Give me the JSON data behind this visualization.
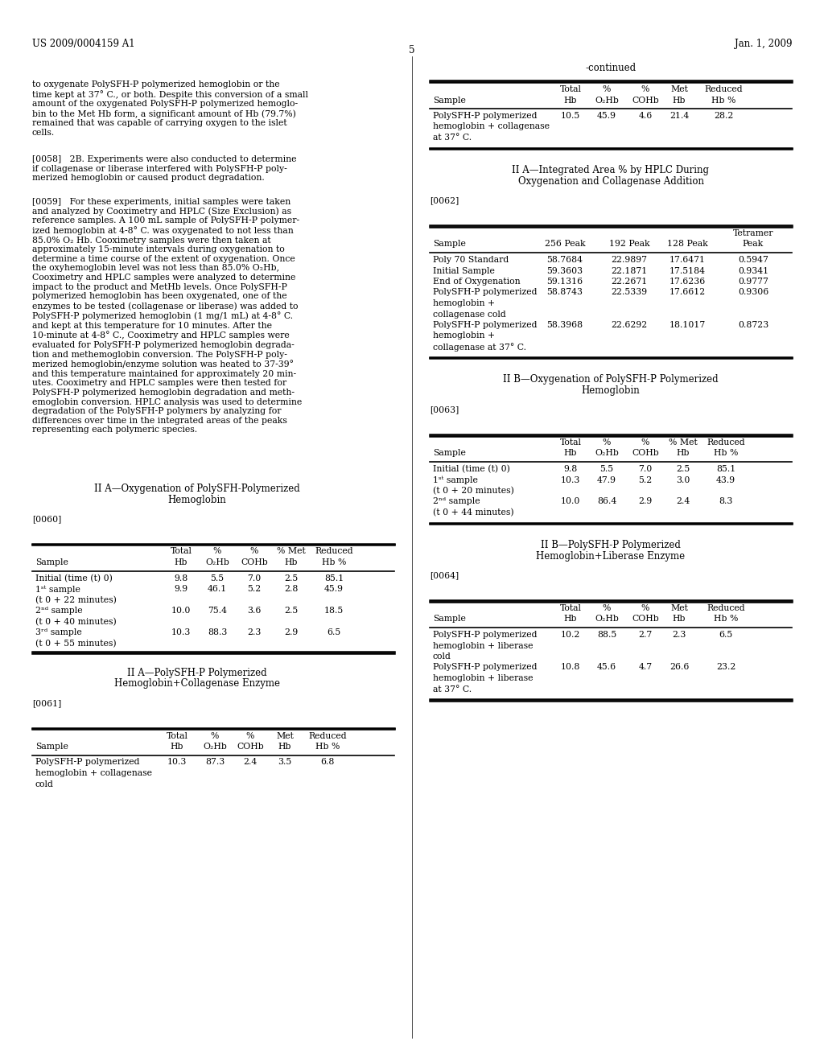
{
  "bg_color": "#ffffff",
  "header_left": "US 2009/0004159 A1",
  "header_right": "Jan. 1, 2009",
  "page_number": "5"
}
